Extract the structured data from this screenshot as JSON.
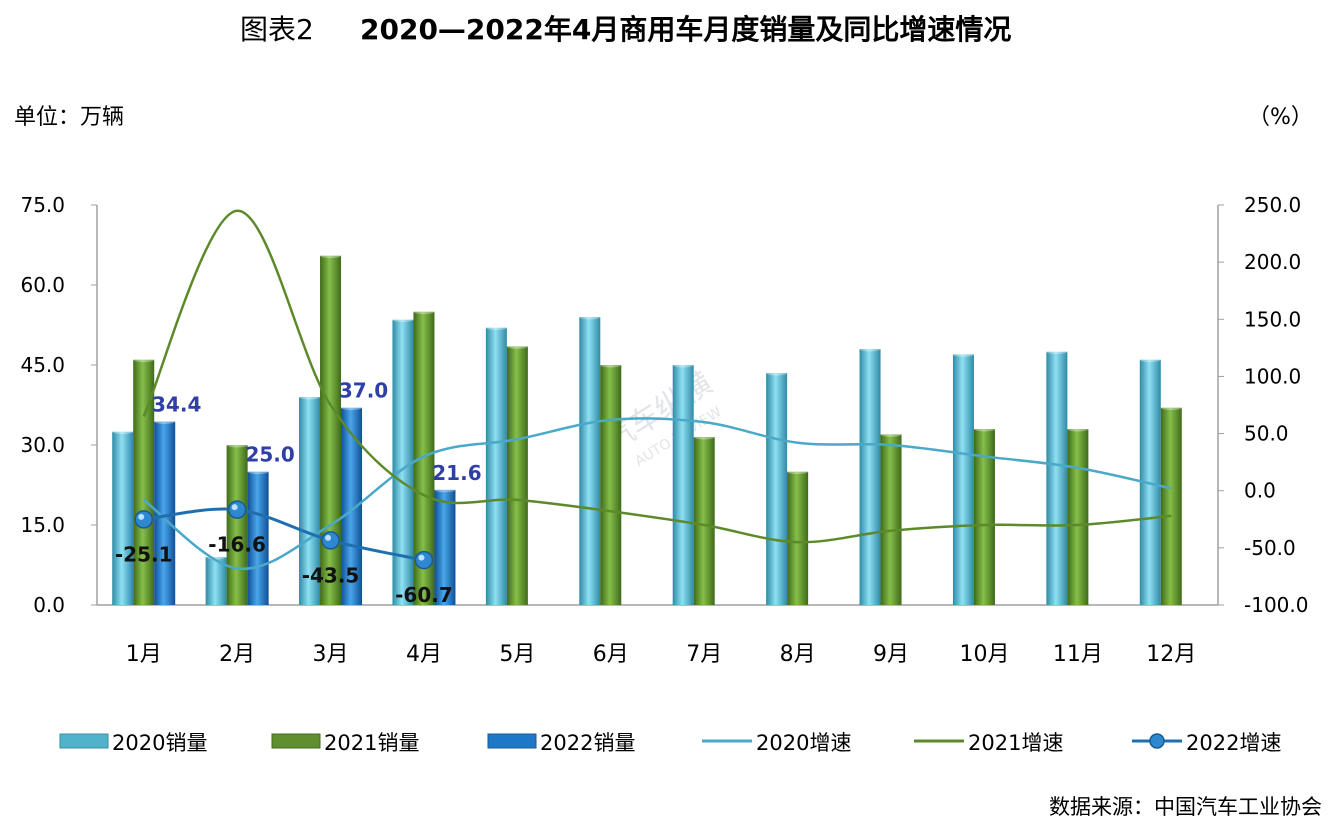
{
  "title_prefix": "图表2",
  "title_main": "2020—2022年4月商用车月度销量及同比增速情况",
  "unit_left": "单位：万辆",
  "unit_right": "（%）",
  "source": "数据来源：中国汽车工业协会",
  "watermark": {
    "cn": "汽车纵横",
    "en": "AUTO REVIEW"
  },
  "colors": {
    "bar2020": "#4fb3cc",
    "bar2021": "#5f8f2e",
    "bar2022": "#1e78c8",
    "line2020": "#4aa9c8",
    "line2021": "#5c8a2a",
    "line2022": "#1f6fb0",
    "axis": "#a0a0a0",
    "label_blue": "#2e3fa8"
  },
  "chart_data": {
    "type": "bar",
    "categories": [
      "1月",
      "2月",
      "3月",
      "4月",
      "5月",
      "6月",
      "7月",
      "8月",
      "9月",
      "10月",
      "11月",
      "12月"
    ],
    "y_left": {
      "min": 0,
      "max": 75,
      "ticks": [
        "0.0",
        "15.0",
        "30.0",
        "45.0",
        "60.0",
        "75.0"
      ]
    },
    "y_right": {
      "min": -100,
      "max": 250,
      "ticks": [
        "-100.0",
        "-50.0",
        "0.0",
        "50.0",
        "100.0",
        "150.0",
        "200.0",
        "250.0"
      ]
    },
    "grid": false,
    "legend_position": "bottom",
    "bar_series": [
      {
        "name": "2020销量",
        "values": [
          32.5,
          9,
          39,
          53.5,
          52,
          54,
          45,
          43.5,
          48,
          47,
          47.5,
          46
        ]
      },
      {
        "name": "2021销量",
        "values": [
          46,
          30,
          65.5,
          55,
          48.5,
          45,
          31.5,
          25,
          32,
          33,
          33,
          37
        ]
      },
      {
        "name": "2022销量",
        "values": [
          34.4,
          25.0,
          37.0,
          21.6
        ],
        "labels": [
          "34.4",
          "25.0",
          "37.0",
          "21.6"
        ]
      }
    ],
    "line_series": [
      {
        "name": "2020增速",
        "values": [
          -8,
          -68,
          -30,
          30,
          45,
          62,
          60,
          42,
          40,
          30,
          20,
          2
        ]
      },
      {
        "name": "2021增速",
        "values": [
          65,
          245,
          75,
          -4,
          -8,
          -18,
          -30,
          -45,
          -35,
          -30,
          -30,
          -22
        ]
      },
      {
        "name": "2022增速",
        "values": [
          -25.1,
          -16.6,
          -43.5,
          -60.7
        ],
        "labels": [
          "-25.1",
          "-16.6",
          "-43.5",
          "-60.7"
        ]
      }
    ]
  }
}
